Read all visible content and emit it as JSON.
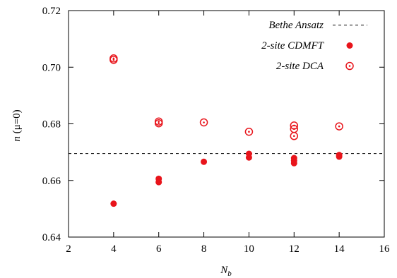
{
  "chart_data": {
    "type": "scatter",
    "xlabel": {
      "main": "N",
      "sub": "b"
    },
    "ylabel": {
      "var": "n",
      "rest": " (μ=0)"
    },
    "xlim": [
      2,
      16
    ],
    "ylim": [
      0.64,
      0.72
    ],
    "xticks": [
      "2",
      "4",
      "6",
      "8",
      "10",
      "12",
      "14",
      "16"
    ],
    "yticks": [
      "0.64",
      "0.66",
      "0.68",
      "0.70",
      "0.72"
    ],
    "grid": false,
    "legend_position": "top-right",
    "reference_line": {
      "label": "Bethe Ansatz",
      "y": 0.6695,
      "style": "dashed"
    },
    "series": [
      {
        "name": "2-site CDMFT",
        "marker": "filled-circle",
        "color": "#e8141b",
        "points": [
          {
            "x": 4,
            "y": 0.6518
          },
          {
            "x": 6,
            "y": 0.6606
          },
          {
            "x": 6,
            "y": 0.6594
          },
          {
            "x": 8,
            "y": 0.6666
          },
          {
            "x": 10,
            "y": 0.6694
          },
          {
            "x": 10,
            "y": 0.6681
          },
          {
            "x": 12,
            "y": 0.6679
          },
          {
            "x": 12,
            "y": 0.667
          },
          {
            "x": 12,
            "y": 0.6661
          },
          {
            "x": 14,
            "y": 0.669
          },
          {
            "x": 14,
            "y": 0.6684
          }
        ]
      },
      {
        "name": "2-site DCA",
        "marker": "dotted-circle",
        "color": "#e8141b",
        "points": [
          {
            "x": 4,
            "y": 0.7031
          },
          {
            "x": 4,
            "y": 0.7026
          },
          {
            "x": 6,
            "y": 0.6808
          },
          {
            "x": 6,
            "y": 0.6802
          },
          {
            "x": 8,
            "y": 0.6805
          },
          {
            "x": 10,
            "y": 0.6772
          },
          {
            "x": 12,
            "y": 0.6794
          },
          {
            "x": 12,
            "y": 0.6782
          },
          {
            "x": 12,
            "y": 0.6757
          },
          {
            "x": 14,
            "y": 0.6791
          }
        ]
      }
    ]
  }
}
